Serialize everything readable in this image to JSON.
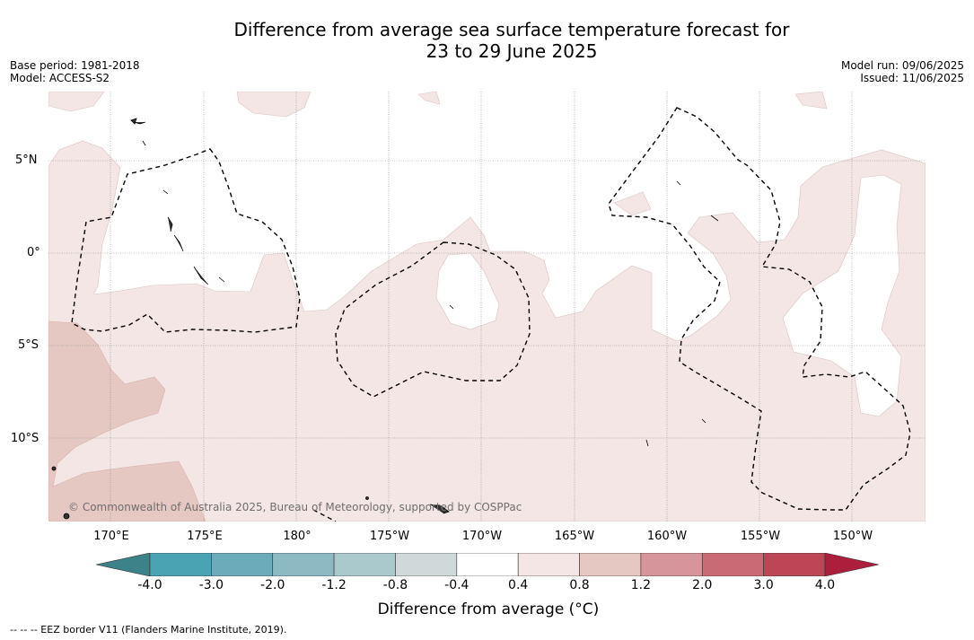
{
  "title": {
    "line1": "Difference from average sea surface temperature forecast for",
    "line2": "23 to 29 June 2025"
  },
  "meta_left": {
    "base_period": "Base period: 1981-2018",
    "model": "Model: ACCESS-S2"
  },
  "meta_right": {
    "model_run": "Model run: 09/06/2025",
    "issued": "Issued: 11/06/2025"
  },
  "map": {
    "lat_labels": [
      "5°N",
      "0°",
      "5°S",
      "10°S"
    ],
    "lon_labels": [
      "170°E",
      "175°E",
      "180°",
      "175°W",
      "170°W",
      "165°W",
      "160°W",
      "155°W",
      "150°W"
    ],
    "copyright": "© Commonwealth of Australia 2025, Bureau of Meteorology, supported by COSPPac",
    "colors": {
      "anomaly_0_4_0_8": "#f4e6e4",
      "anomaly_0_8_1_2": "#e6c8c3",
      "land": "#333333"
    }
  },
  "colorbar": {
    "ticks": [
      "-4.0",
      "-3.0",
      "-2.0",
      "-1.2",
      "-0.8",
      "-0.4",
      "0.4",
      "0.8",
      "1.2",
      "2.0",
      "3.0",
      "4.0"
    ],
    "bins": [
      {
        "range": "< -4.0",
        "color": "#3d8189"
      },
      {
        "range": "-4.0 to -3.0",
        "color": "#4aa3b3"
      },
      {
        "range": "-3.0 to -2.0",
        "color": "#6cabb9"
      },
      {
        "range": "-2.0 to -1.2",
        "color": "#8cb9c2"
      },
      {
        "range": "-1.2 to -0.8",
        "color": "#aac9cd"
      },
      {
        "range": "-0.8 to -0.4",
        "color": "#cfd9d9"
      },
      {
        "range": "-0.4 to 0.4",
        "color": "#ffffff"
      },
      {
        "range": "0.4 to 0.8",
        "color": "#f4e6e4"
      },
      {
        "range": "0.8 to 1.2",
        "color": "#e6c8c3"
      },
      {
        "range": "1.2 to 2.0",
        "color": "#d6959a"
      },
      {
        "range": "2.0 to 3.0",
        "color": "#c96a74"
      },
      {
        "range": "3.0 to 4.0",
        "color": "#bc4556"
      },
      {
        "range": "> 4.0",
        "color": "#ab1f3c"
      }
    ],
    "label": "Difference from average (°C)"
  },
  "footnote": "--  --  -- EEZ border V11 (Flanders Marine Institute, 2019)."
}
